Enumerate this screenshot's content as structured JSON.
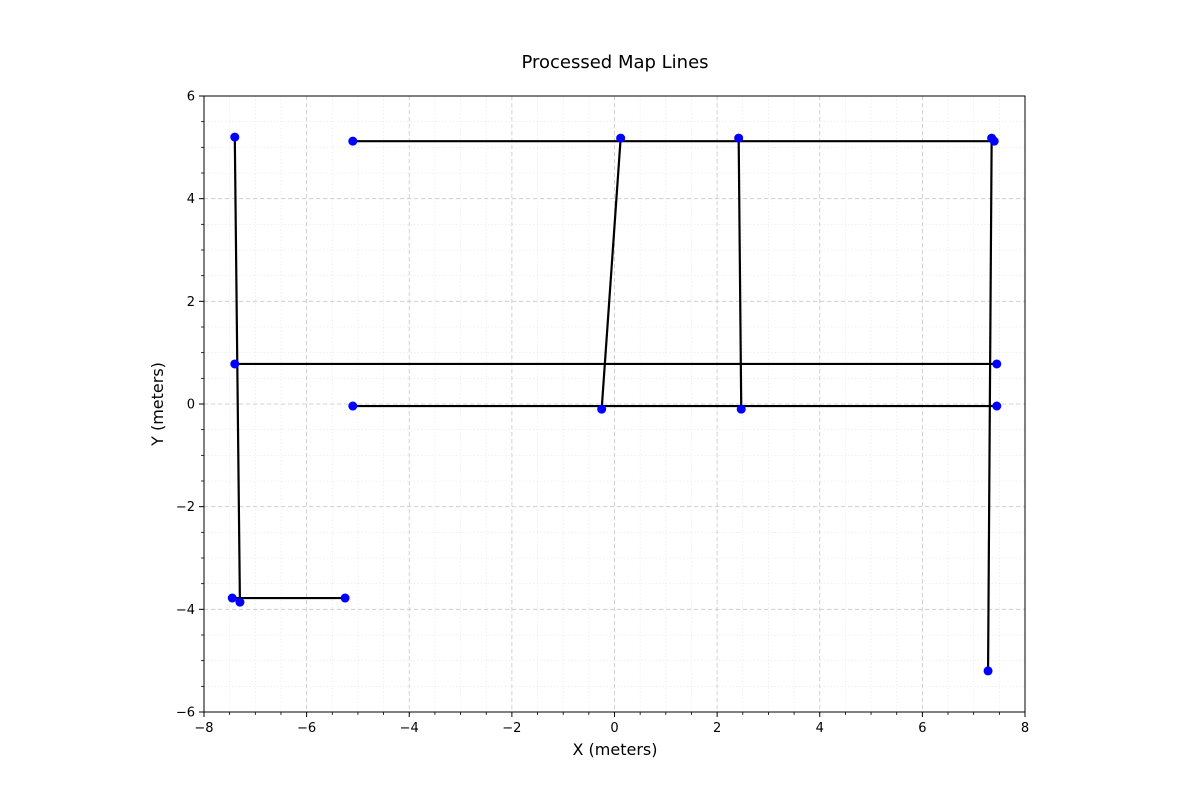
{
  "chart_data": {
    "type": "line",
    "title": "Processed Map Lines",
    "xlabel": "X (meters)",
    "ylabel": "Y (meters)",
    "xlim": [
      -8,
      8
    ],
    "ylim": [
      -6,
      6
    ],
    "x_ticks": [
      -8,
      -6,
      -4,
      -2,
      0,
      2,
      4,
      6,
      8
    ],
    "y_ticks": [
      -6,
      -4,
      -2,
      0,
      2,
      4,
      6
    ],
    "x_tick_labels": [
      "−8",
      "−6",
      "−4",
      "−2",
      "0",
      "2",
      "4",
      "6",
      "8"
    ],
    "y_tick_labels": [
      "−6",
      "−4",
      "−2",
      "0",
      "2",
      "4",
      "6"
    ],
    "grid": true,
    "minor_grid": true,
    "line_color": "#000000",
    "point_color": "#0000ff",
    "segments": [
      {
        "x1": -5.1,
        "y1": 5.12,
        "x2": 7.4,
        "y2": 5.12
      },
      {
        "x1": -7.4,
        "y1": 0.78,
        "x2": 7.45,
        "y2": 0.78
      },
      {
        "x1": -5.1,
        "y1": -0.04,
        "x2": 7.45,
        "y2": -0.04
      },
      {
        "x1": -7.4,
        "y1": 5.2,
        "x2": -7.3,
        "y2": -3.86
      },
      {
        "x1": -7.45,
        "y1": -3.78,
        "x2": -5.25,
        "y2": -3.78
      },
      {
        "x1": 0.12,
        "y1": 5.18,
        "x2": -0.25,
        "y2": -0.1
      },
      {
        "x1": 2.42,
        "y1": 5.18,
        "x2": 2.47,
        "y2": -0.1
      },
      {
        "x1": 7.35,
        "y1": 5.18,
        "x2": 7.28,
        "y2": -5.2
      }
    ]
  }
}
